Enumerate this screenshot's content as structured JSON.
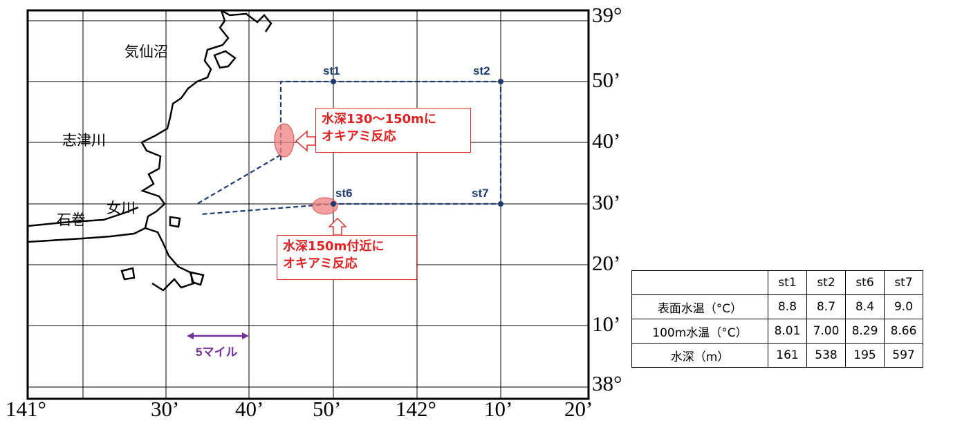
{
  "map": {
    "lat_labels": [
      "39°",
      "50’",
      "40’",
      "30’",
      "20’",
      "10’",
      "38°"
    ],
    "lon_labels": [
      "141°",
      "30’",
      "40’",
      "50’",
      "142°",
      "10’",
      "20’"
    ],
    "places": [
      "気仙沼",
      "志津川",
      "石巻",
      "女川"
    ],
    "stations": [
      "st1",
      "st2",
      "st6",
      "st7"
    ],
    "scale_label": "5マイル",
    "colors": {
      "route": "#1f3b73",
      "krill": "#f08080",
      "callout": "#e03030",
      "scale": "#7030a0"
    }
  },
  "callouts": [
    {
      "line1": "水深130～150mに",
      "line2": "オキアミ反応"
    },
    {
      "line1": "水深150m付近に",
      "line2": "オキアミ反応"
    }
  ],
  "table": {
    "header": [
      "",
      "st1",
      "st2",
      "st6",
      "st7"
    ],
    "rows": [
      [
        "表面水温（°C）",
        "8.8",
        "8.7",
        "8.4",
        "9.0"
      ],
      [
        "100m水温（°C）",
        "8.01",
        "7.00",
        "8.29",
        "8.66"
      ],
      [
        "水深（m）",
        "161",
        "538",
        "195",
        "597"
      ]
    ]
  }
}
